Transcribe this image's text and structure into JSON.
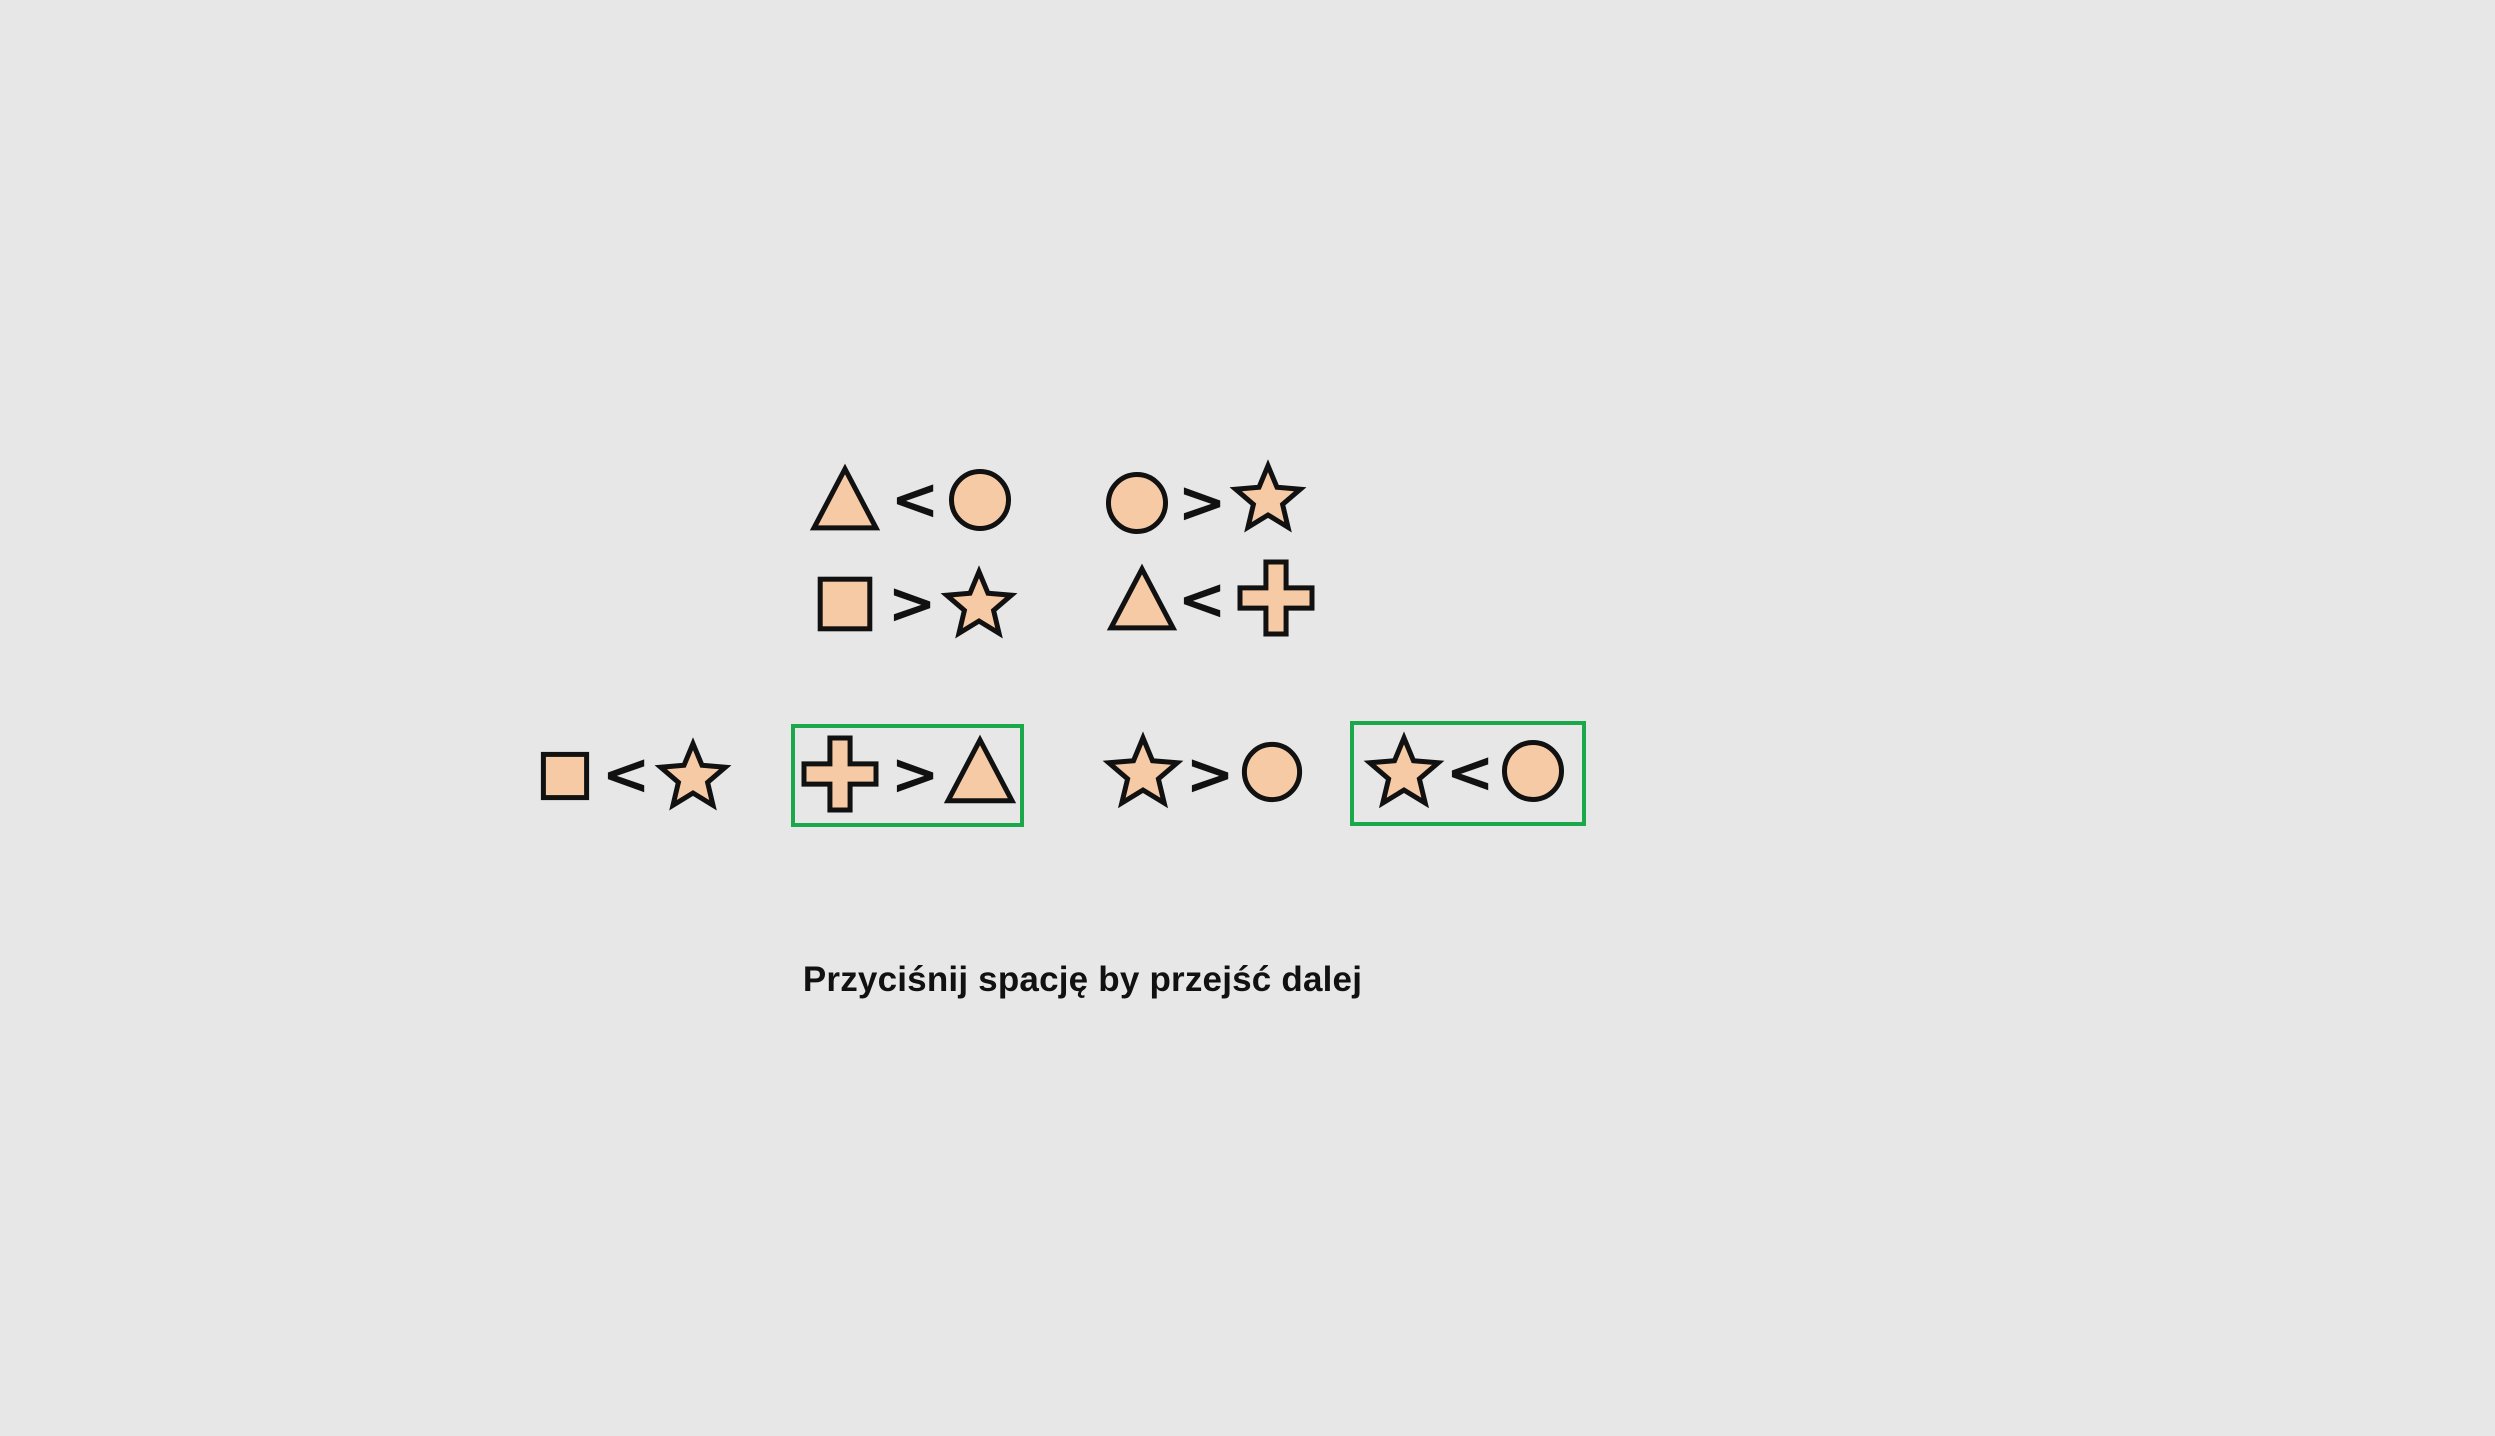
{
  "colors": {
    "background": "#e7e7e7",
    "shape_fill": "#f7caa6",
    "shape_stroke": "#111111",
    "highlight": "#1aa84a"
  },
  "premises": [
    {
      "left": "triangle-icon",
      "op": "<",
      "right": "circle-icon"
    },
    {
      "left": "circle-icon",
      "op": ">",
      "right": "star-icon"
    },
    {
      "left": "square-icon",
      "op": ">",
      "right": "star-icon"
    },
    {
      "left": "triangle-icon",
      "op": "<",
      "right": "cross-icon"
    }
  ],
  "options": [
    {
      "left": "square-icon",
      "op": "<",
      "right": "star-icon",
      "highlighted": false
    },
    {
      "left": "cross-icon",
      "op": ">",
      "right": "triangle-icon",
      "highlighted": true
    },
    {
      "left": "star-icon",
      "op": ">",
      "right": "circle-icon",
      "highlighted": false
    },
    {
      "left": "star-icon",
      "op": "<",
      "right": "circle-icon",
      "highlighted": true
    }
  ],
  "instruction": "Przyciśnij spację by przejść dalej"
}
